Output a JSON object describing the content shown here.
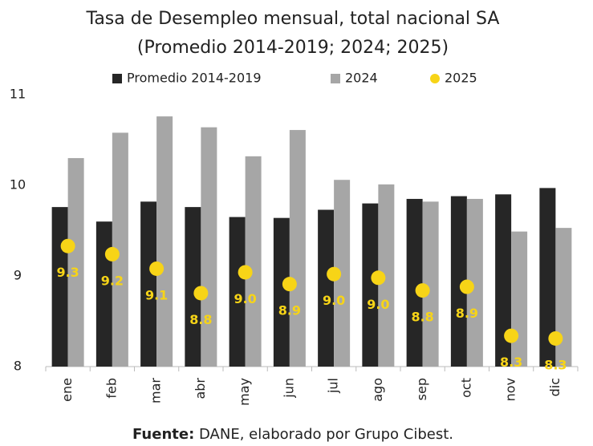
{
  "chart_data": {
    "type": "bar",
    "title": "Tasa de Desempleo mensual, total nacional SA",
    "subtitle": "(Promedio 2014-2019; 2024; 2025)",
    "categories": [
      "ene",
      "feb",
      "mar",
      "abr",
      "may",
      "jun",
      "jul",
      "ago",
      "sep",
      "oct",
      "nov",
      "dic"
    ],
    "series": [
      {
        "name": "Promedio 2014-2019",
        "type": "bar",
        "color": "#262626",
        "values": [
          9.76,
          9.6,
          9.82,
          9.76,
          9.65,
          9.64,
          9.73,
          9.8,
          9.85,
          9.88,
          9.9,
          9.97
        ]
      },
      {
        "name": "2024",
        "type": "bar",
        "color": "#a6a6a6",
        "values": [
          10.3,
          10.58,
          10.76,
          10.64,
          10.32,
          10.61,
          10.06,
          10.01,
          9.82,
          9.85,
          9.49,
          9.53
        ]
      },
      {
        "name": "2025",
        "type": "scatter",
        "color": "#f7d417",
        "values": [
          9.33,
          9.24,
          9.08,
          8.81,
          9.04,
          8.91,
          9.02,
          8.98,
          8.84,
          8.88,
          8.34,
          8.31
        ],
        "value_labels": [
          "9.3",
          "9.2",
          "9.1",
          "8.8",
          "9.0",
          "8.9",
          "9.0",
          "9.0",
          "8.8",
          "8.9",
          "8.3",
          "8.3"
        ]
      }
    ],
    "ylim": [
      8,
      11
    ],
    "yticks": [
      8,
      9,
      10,
      11
    ],
    "grid": false,
    "source_label": "Fuente:",
    "source_text": "DANE, elaborado por Grupo Cibest."
  }
}
